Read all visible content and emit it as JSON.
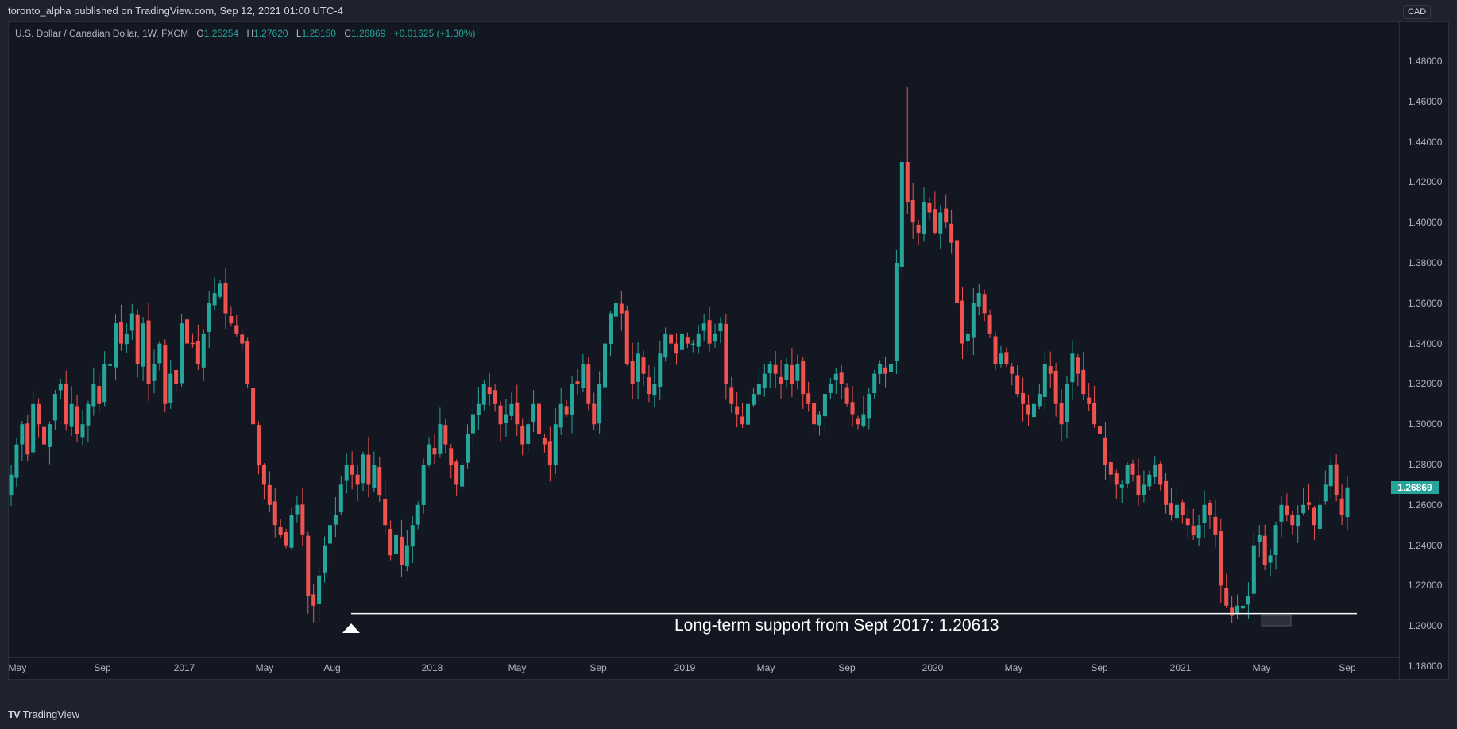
{
  "header": {
    "published": "toronto_alpha published on TradingView.com, Sep 12, 2021 01:00 UTC-4"
  },
  "legend": {
    "symbol": "U.S. Dollar / Canadian Dollar, 1W, FXCM",
    "o_label": "O",
    "o_value": "1.25254",
    "h_label": "H",
    "h_value": "1.27620",
    "l_label": "L",
    "l_value": "1.25150",
    "c_label": "C",
    "c_value": "1.26869",
    "change": "+0.01625 (+1.30%)"
  },
  "price_axis": {
    "currency": "CAD",
    "last_price": "1.26869",
    "ticks": [
      "1.48000",
      "1.46000",
      "1.44000",
      "1.42000",
      "1.40000",
      "1.38000",
      "1.36000",
      "1.34000",
      "1.32000",
      "1.30000",
      "1.28000",
      "1.26000",
      "1.24000",
      "1.22000",
      "1.20000",
      "1.18000"
    ]
  },
  "time_axis": {
    "labels": [
      "May",
      "Sep",
      "2017",
      "May",
      "Aug",
      "2018",
      "May",
      "Sep",
      "2019",
      "May",
      "Sep",
      "2020",
      "May",
      "Sep",
      "2021",
      "May",
      "Sep"
    ]
  },
  "annotation": {
    "text": "Long-term support from Sept 2017: 1.20613",
    "level": 1.20613
  },
  "footer": {
    "brand": "TradingView",
    "logo": "TV"
  },
  "colors": {
    "up": "#26a69a",
    "down": "#ef5350",
    "background": "#131722",
    "frame": "#1e222d",
    "support_line": "#ffffff"
  },
  "chart_data": {
    "type": "candlestick",
    "title": "U.S. Dollar / Canadian Dollar, 1W, FXCM",
    "xlabel": "",
    "ylabel": "CAD",
    "ylim": [
      1.17,
      1.49
    ],
    "timeframe": "1W",
    "x_range": [
      "2016-04",
      "2021-09"
    ],
    "legend_ohlc": {
      "open": 1.25254,
      "high": 1.2762,
      "low": 1.2515,
      "close": 1.26869,
      "change": 0.01625,
      "change_pct": 1.3
    },
    "support_level": 1.20613,
    "key_points": [
      {
        "date": "2016-05",
        "close": 1.29
      },
      {
        "date": "2016-11",
        "close": 1.35
      },
      {
        "date": "2017-05",
        "close": 1.37,
        "high": 1.379
      },
      {
        "date": "2017-09",
        "close": 1.215,
        "low": 1.2061
      },
      {
        "date": "2018-01",
        "close": 1.23
      },
      {
        "date": "2018-06",
        "close": 1.325
      },
      {
        "date": "2018-12",
        "close": 1.36,
        "high": 1.366
      },
      {
        "date": "2019-07",
        "close": 1.31
      },
      {
        "date": "2019-12",
        "close": 1.3
      },
      {
        "date": "2020-03",
        "close": 1.43,
        "high": 1.467
      },
      {
        "date": "2020-09",
        "close": 1.31
      },
      {
        "date": "2021-05",
        "close": 1.205,
        "low": 1.2006
      },
      {
        "date": "2021-08",
        "close": 1.28,
        "high": 1.2949
      },
      {
        "date": "2021-09",
        "close": 1.26869
      }
    ],
    "path": [
      1.275,
      1.29,
      1.3,
      1.285,
      1.31,
      1.3,
      1.29,
      1.3,
      1.315,
      1.32,
      1.3,
      1.31,
      1.295,
      1.3,
      1.31,
      1.32,
      1.31,
      1.33,
      1.33,
      1.35,
      1.34,
      1.345,
      1.355,
      1.33,
      1.35,
      1.32,
      1.33,
      1.34,
      1.31,
      1.325,
      1.32,
      1.35,
      1.34,
      1.34,
      1.33,
      1.345,
      1.36,
      1.365,
      1.37,
      1.355,
      1.35,
      1.345,
      1.34,
      1.32,
      1.3,
      1.28,
      1.27,
      1.26,
      1.25,
      1.245,
      1.24,
      1.255,
      1.26,
      1.245,
      1.215,
      1.21,
      1.225,
      1.24,
      1.25,
      1.255,
      1.27,
      1.28,
      1.275,
      1.27,
      1.285,
      1.27,
      1.28,
      1.265,
      1.25,
      1.235,
      1.245,
      1.23,
      1.24,
      1.25,
      1.26,
      1.28,
      1.29,
      1.285,
      1.3,
      1.29,
      1.28,
      1.27,
      1.28,
      1.295,
      1.305,
      1.31,
      1.32,
      1.315,
      1.31,
      1.3,
      1.305,
      1.31,
      1.3,
      1.29,
      1.3,
      1.31,
      1.295,
      1.29,
      1.28,
      1.3,
      1.31,
      1.305,
      1.32,
      1.32,
      1.33,
      1.31,
      1.3,
      1.32,
      1.34,
      1.355,
      1.36,
      1.355,
      1.33,
      1.32,
      1.335,
      1.325,
      1.315,
      1.32,
      1.335,
      1.345,
      1.34,
      1.335,
      1.345,
      1.34,
      1.34,
      1.345,
      1.35,
      1.34,
      1.345,
      1.35,
      1.32,
      1.31,
      1.305,
      1.3,
      1.31,
      1.315,
      1.32,
      1.325,
      1.33,
      1.325,
      1.32,
      1.33,
      1.32,
      1.33,
      1.315,
      1.31,
      1.3,
      1.305,
      1.315,
      1.32,
      1.325,
      1.32,
      1.31,
      1.305,
      1.3,
      1.305,
      1.315,
      1.325,
      1.33,
      1.325,
      1.33,
      1.38,
      1.43,
      1.41,
      1.4,
      1.395,
      1.41,
      1.405,
      1.395,
      1.405,
      1.4,
      1.39,
      1.36,
      1.34,
      1.345,
      1.36,
      1.365,
      1.355,
      1.345,
      1.33,
      1.335,
      1.33,
      1.325,
      1.315,
      1.31,
      1.305,
      1.31,
      1.315,
      1.33,
      1.325,
      1.31,
      1.3,
      1.32,
      1.335,
      1.325,
      1.315,
      1.31,
      1.3,
      1.295,
      1.28,
      1.275,
      1.27,
      1.27,
      1.28,
      1.275,
      1.265,
      1.27,
      1.275,
      1.28,
      1.27,
      1.26,
      1.255,
      1.26,
      1.255,
      1.25,
      1.245,
      1.25,
      1.26,
      1.255,
      1.245,
      1.22,
      1.21,
      1.205,
      1.21,
      1.21,
      1.215,
      1.24,
      1.245,
      1.23,
      1.235,
      1.25,
      1.26,
      1.255,
      1.25,
      1.255,
      1.26,
      1.26,
      1.25,
      1.26,
      1.27,
      1.28,
      1.265,
      1.255,
      1.26869
    ]
  }
}
